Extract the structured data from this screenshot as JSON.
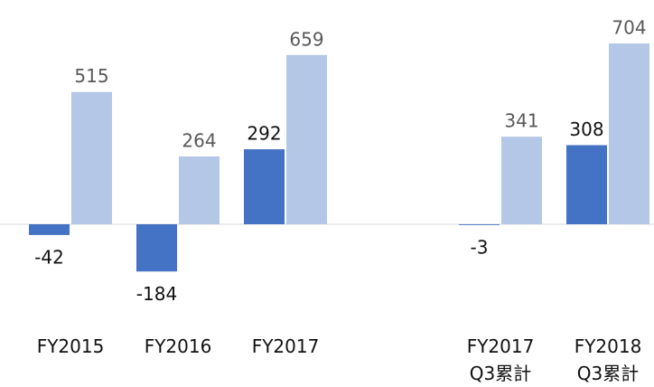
{
  "chart_data": {
    "type": "bar",
    "categories": [
      "FY2015",
      "FY2016",
      "FY2017",
      null,
      "FY2017\nQ3累計",
      "FY2018\nQ3累計"
    ],
    "series": [
      {
        "color": "#4472c4",
        "values": [
          -42,
          -184,
          292,
          null,
          -3,
          308
        ]
      },
      {
        "color": "#b4c7e7",
        "values": [
          515,
          264,
          659,
          null,
          341,
          704
        ]
      }
    ]
  }
}
